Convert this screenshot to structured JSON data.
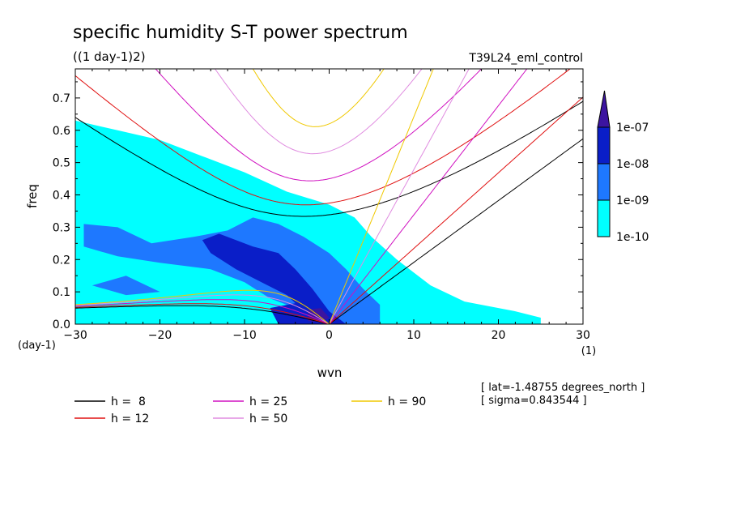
{
  "chart_data": {
    "type": "heatmap",
    "title": "specific humidity S-T power spectrum",
    "subtitle": "((1 day-1)2)",
    "run_label": "T39L24_eml_control",
    "xlabel": "wvn",
    "ylabel": "freq",
    "x_unit": "(1)",
    "y_unit": "(day-1)",
    "xlim": [
      -30,
      30
    ],
    "ylim": [
      0,
      0.79
    ],
    "x_ticks": [
      -30,
      -20,
      -10,
      0,
      10,
      20,
      30
    ],
    "x_tick_labels": [
      "−30",
      "−20",
      "−10",
      "0",
      "10",
      "20",
      "30"
    ],
    "y_ticks": [
      0.0,
      0.1,
      0.2,
      0.3,
      0.4,
      0.5,
      0.6,
      0.7
    ],
    "y_tick_labels": [
      "0.0",
      "0.1",
      "0.2",
      "0.3",
      "0.4",
      "0.5",
      "0.6",
      "0.7"
    ],
    "colorbar": {
      "levels": [
        "1e-10",
        "1e-09",
        "1e-08",
        "1e-07"
      ],
      "colors": [
        "#00ffff",
        "#1e78ff",
        "#0a1ec8",
        "#3c14a0"
      ]
    },
    "shading_regions": [
      {
        "level": 0,
        "points": [
          [
            -30,
            0.02
          ],
          [
            -30,
            0.63
          ],
          [
            -25,
            0.6
          ],
          [
            -20,
            0.57
          ],
          [
            -15,
            0.52
          ],
          [
            -10,
            0.47
          ],
          [
            -5,
            0.41
          ],
          [
            0,
            0.37
          ],
          [
            3,
            0.33
          ],
          [
            5,
            0.27
          ],
          [
            8,
            0.2
          ],
          [
            12,
            0.12
          ],
          [
            16,
            0.07
          ],
          [
            22,
            0.04
          ],
          [
            25,
            0.02
          ],
          [
            25,
            0
          ],
          [
            -30,
            0
          ]
        ]
      },
      {
        "level": 0,
        "points": [
          [
            -28,
            0.46
          ],
          [
            -24,
            0.5
          ],
          [
            -20,
            0.44
          ],
          [
            -17,
            0.47
          ],
          [
            -13,
            0.49
          ],
          [
            -11,
            0.44
          ],
          [
            -16,
            0.4
          ],
          [
            -22,
            0.41
          ],
          [
            -27,
            0.42
          ]
        ]
      },
      {
        "level": 1,
        "points": [
          [
            -29,
            0.31
          ],
          [
            -25,
            0.3
          ],
          [
            -21,
            0.25
          ],
          [
            -16,
            0.27
          ],
          [
            -12,
            0.29
          ],
          [
            -9,
            0.33
          ],
          [
            -6,
            0.31
          ],
          [
            -3,
            0.27
          ],
          [
            0,
            0.22
          ],
          [
            2,
            0.17
          ],
          [
            4,
            0.11
          ],
          [
            6,
            0.06
          ],
          [
            6,
            0
          ],
          [
            -2,
            0
          ],
          [
            -4,
            0.05
          ],
          [
            -7,
            0.08
          ],
          [
            -10,
            0.13
          ],
          [
            -14,
            0.17
          ],
          [
            -20,
            0.19
          ],
          [
            -25,
            0.21
          ],
          [
            -29,
            0.24
          ]
        ]
      },
      {
        "level": 1,
        "points": [
          [
            -28,
            0.12
          ],
          [
            -24,
            0.15
          ],
          [
            -20,
            0.1
          ],
          [
            -24,
            0.09
          ]
        ]
      },
      {
        "level": 2,
        "points": [
          [
            -13,
            0.28
          ],
          [
            -9,
            0.24
          ],
          [
            -6,
            0.22
          ],
          [
            -4,
            0.17
          ],
          [
            -2,
            0.11
          ],
          [
            0,
            0.04
          ],
          [
            2,
            0
          ],
          [
            -2,
            0
          ],
          [
            -3,
            0.04
          ],
          [
            -5,
            0.09
          ],
          [
            -8,
            0.13
          ],
          [
            -11,
            0.17
          ],
          [
            -14,
            0.22
          ],
          [
            -15,
            0.26
          ]
        ]
      },
      {
        "level": 2,
        "points": [
          [
            -7,
            0.05
          ],
          [
            -3,
            0.07
          ],
          [
            0,
            0.03
          ],
          [
            0,
            0
          ],
          [
            -6,
            0
          ]
        ]
      },
      {
        "level": 3,
        "points": [
          [
            -2.5,
            0.045
          ],
          [
            -1,
            0.05
          ],
          [
            0,
            0.02
          ],
          [
            -1,
            0.005
          ],
          [
            -2.5,
            0.01
          ]
        ]
      }
    ],
    "dispersion_curves": [
      {
        "equivalent_depth": 8,
        "color": "#000000"
      },
      {
        "equivalent_depth": 12,
        "color": "#e01010"
      },
      {
        "equivalent_depth": 25,
        "color": "#d010c0"
      },
      {
        "equivalent_depth": 50,
        "color": "#e08ce0"
      },
      {
        "equivalent_depth": 90,
        "color": "#f0c800"
      }
    ],
    "legend_labels": [
      "h =  8",
      "h = 12",
      "h = 25",
      "h = 50",
      "h = 90"
    ],
    "annotations": {
      "latitude": "[ lat=-1.48755 degrees_north ]",
      "sigma": "[ sigma=0.843544 ]"
    }
  }
}
